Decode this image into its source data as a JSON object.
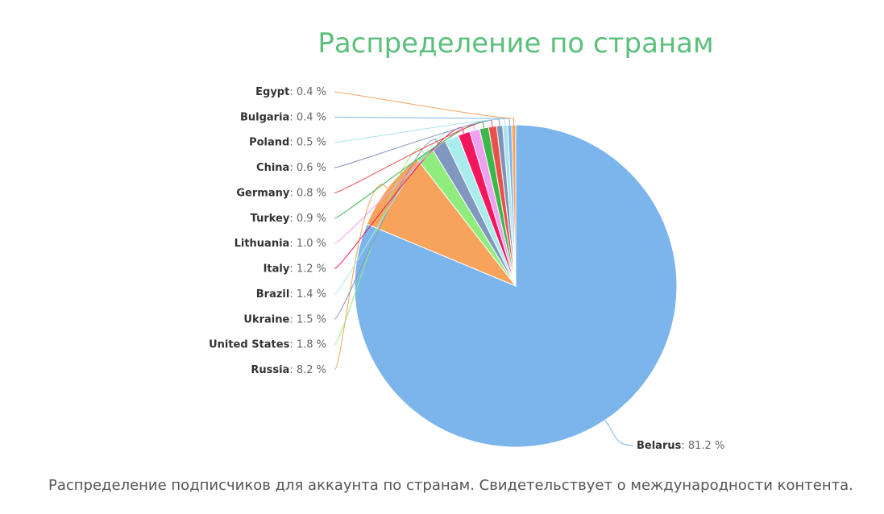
{
  "chart_data": {
    "type": "pie",
    "title": "Распределение по странам",
    "caption": "Распределение подписчиков для аккаунта по странам. Свидетельствует о международности контента.",
    "value_suffix": " %",
    "slices": [
      {
        "name": "Belarus",
        "value": 81.2,
        "value_label": "81.2",
        "color": "#7cb5ec"
      },
      {
        "name": "Russia",
        "value": 8.2,
        "value_label": "8.2",
        "color": "#f7a35c"
      },
      {
        "name": "United States",
        "value": 1.8,
        "value_label": "1.8",
        "color": "#90ed7d"
      },
      {
        "name": "Ukraine",
        "value": 1.5,
        "value_label": "1.5",
        "color": "#8098c0"
      },
      {
        "name": "Brazil",
        "value": 1.4,
        "value_label": "1.4",
        "color": "#a8ecec"
      },
      {
        "name": "Italy",
        "value": 1.2,
        "value_label": "1.2",
        "color": "#f5155c"
      },
      {
        "name": "Lithuania",
        "value": 1.0,
        "value_label": "1.0",
        "color": "#f0a0f0"
      },
      {
        "name": "Turkey",
        "value": 0.9,
        "value_label": "0.9",
        "color": "#3cb84a"
      },
      {
        "name": "Germany",
        "value": 0.8,
        "value_label": "0.8",
        "color": "#e8504a"
      },
      {
        "name": "China",
        "value": 0.6,
        "value_label": "0.6",
        "color": "#7f93b8"
      },
      {
        "name": "Poland",
        "value": 0.5,
        "value_label": "0.5",
        "color": "#a8e4f0"
      },
      {
        "name": "Bulgaria",
        "value": 0.4,
        "value_label": "0.4",
        "color": "#80b4e8"
      },
      {
        "name": "Egypt",
        "value": 0.4,
        "value_label": "0.4",
        "color": "#f7a35c"
      }
    ]
  }
}
